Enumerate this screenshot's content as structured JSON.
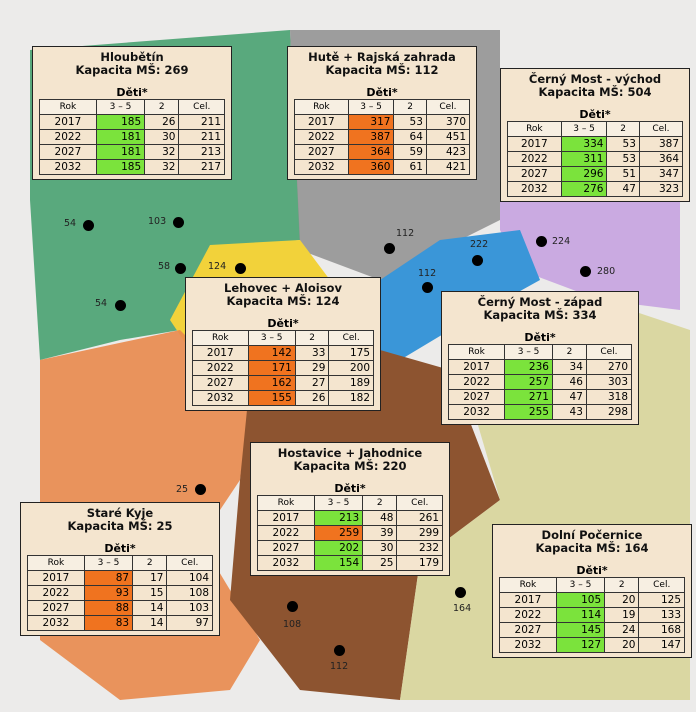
{
  "panels": [
    {
      "name": "Hloubětín",
      "capacity": "Kapacita MŠ: 269",
      "group": "Děti*",
      "header": [
        "Rok",
        "3 – 5",
        "2",
        "Cel."
      ],
      "rows": [
        [
          2017,
          185,
          26,
          211
        ],
        [
          2022,
          181,
          30,
          211
        ],
        [
          2027,
          181,
          32,
          213
        ],
        [
          2032,
          185,
          32,
          217
        ]
      ],
      "colors": [
        "#7be33c",
        "#7be33c",
        "#7be33c",
        "#7be33c"
      ]
    },
    {
      "name": "Hutě + Rajská zahrada",
      "capacity": "Kapacita MŠ: 112",
      "group": "Děti*",
      "header": [
        "Rok",
        "3 – 5",
        "2",
        "Cel."
      ],
      "rows": [
        [
          2017,
          317,
          53,
          370
        ],
        [
          2022,
          387,
          64,
          451
        ],
        [
          2027,
          364,
          59,
          423
        ],
        [
          2032,
          360,
          61,
          421
        ]
      ],
      "colors": [
        "#f0731f",
        "#f0731f",
        "#f0731f",
        "#f0731f"
      ]
    },
    {
      "name": "Černý Most - východ",
      "capacity": "Kapacita MŠ: 504",
      "group": "Děti*",
      "header": [
        "Rok",
        "3 – 5",
        "2",
        "Cel."
      ],
      "rows": [
        [
          2017,
          334,
          53,
          387
        ],
        [
          2022,
          311,
          53,
          364
        ],
        [
          2027,
          296,
          51,
          347
        ],
        [
          2032,
          276,
          47,
          323
        ]
      ],
      "colors": [
        "#7be33c",
        "#7be33c",
        "#7be33c",
        "#7be33c"
      ]
    },
    {
      "name": "Lehovec + Aloisov",
      "capacity": "Kapacita MŠ: 124",
      "group": "Děti*",
      "header": [
        "Rok",
        "3 – 5",
        "2",
        "Cel."
      ],
      "rows": [
        [
          2017,
          142,
          33,
          175
        ],
        [
          2022,
          171,
          29,
          200
        ],
        [
          2027,
          162,
          27,
          189
        ],
        [
          2032,
          155,
          26,
          182
        ]
      ],
      "colors": [
        "#f0731f",
        "#f0731f",
        "#f0731f",
        "#f0731f"
      ]
    },
    {
      "name": "Černý Most - západ",
      "capacity": "Kapacita MŠ: 334",
      "group": "Děti*",
      "header": [
        "Rok",
        "3 – 5",
        "2",
        "Cel."
      ],
      "rows": [
        [
          2017,
          236,
          34,
          270
        ],
        [
          2022,
          257,
          46,
          303
        ],
        [
          2027,
          271,
          47,
          318
        ],
        [
          2032,
          255,
          43,
          298
        ]
      ],
      "colors": [
        "#7be33c",
        "#7be33c",
        "#7be33c",
        "#7be33c"
      ]
    },
    {
      "name": "Hostavice + Jahodnice",
      "capacity": "Kapacita MŠ: 220",
      "group": "Děti*",
      "header": [
        "Rok",
        "3 – 5",
        "2",
        "Cel."
      ],
      "rows": [
        [
          2017,
          213,
          48,
          261
        ],
        [
          2022,
          259,
          39,
          299
        ],
        [
          2027,
          202,
          30,
          232
        ],
        [
          2032,
          154,
          25,
          179
        ]
      ],
      "colors": [
        "#7be33c",
        "#f0731f",
        "#7be33c",
        "#7be33c"
      ]
    },
    {
      "name": "Staré Kyje",
      "capacity": "Kapacita MŠ: 25",
      "group": "Děti*",
      "header": [
        "Rok",
        "3 – 5",
        "2",
        "Cel."
      ],
      "rows": [
        [
          2017,
          87,
          17,
          104
        ],
        [
          2022,
          93,
          15,
          108
        ],
        [
          2027,
          88,
          14,
          103
        ],
        [
          2032,
          83,
          14,
          97
        ]
      ],
      "colors": [
        "#f0731f",
        "#f0731f",
        "#f0731f",
        "#f0731f"
      ]
    },
    {
      "name": "Dolní Počernice",
      "capacity": "Kapacita MŠ: 164",
      "group": "Děti*",
      "header": [
        "Rok",
        "3 – 5",
        "2",
        "Cel."
      ],
      "rows": [
        [
          2017,
          105,
          20,
          125
        ],
        [
          2022,
          114,
          19,
          133
        ],
        [
          2027,
          145,
          24,
          168
        ],
        [
          2032,
          127,
          20,
          147
        ]
      ],
      "colors": [
        "#7be33c",
        "#7be33c",
        "#7be33c",
        "#7be33c"
      ]
    }
  ],
  "markers": [
    54,
    103,
    58,
    124,
    54,
    112,
    222,
    224,
    280,
    112,
    25,
    164,
    108,
    112
  ]
}
